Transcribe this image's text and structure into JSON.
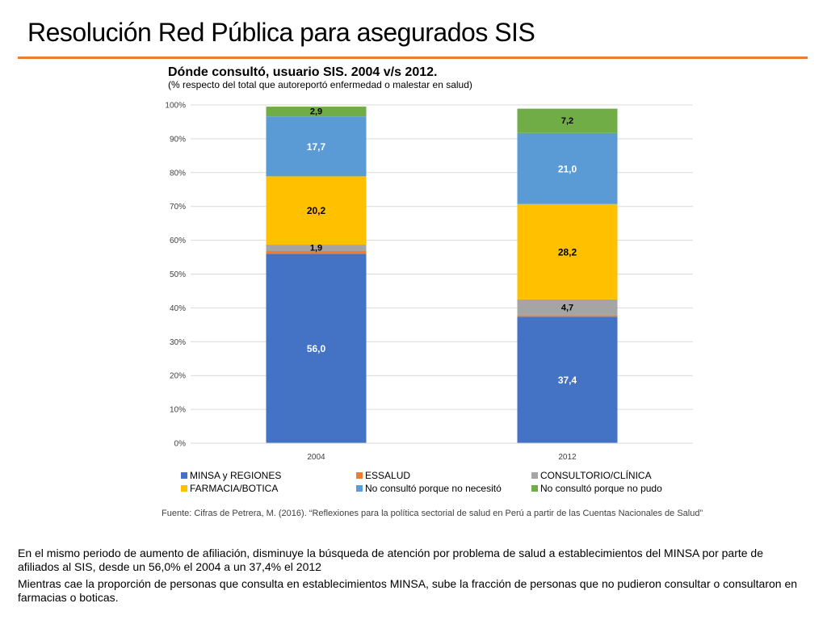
{
  "slide": {
    "title": "Resolución Red Pública para asegurados SIS",
    "accent_color": "#ED7D31",
    "source": "Fuente: Cifras de Petrera, M. (2016). “Reflexiones para la política sectorial de salud en Perú a partir de las Cuentas Nacionales de Salud”",
    "paragraphs": [
      "En el mismo periodo de aumento de afiliación, disminuye la búsqueda de atención por problema de salud a establecimientos del MINSA por parte de afiliados al SIS, desde un 56,0% el 2004 a un 37,4% el 2012",
      "Mientras cae la proporción de personas que consulta en establecimientos MINSA, sube la fracción de personas que no pudieron consultar o consultaron en farmacias o boticas."
    ]
  },
  "chart_data": {
    "type": "bar",
    "stacked": true,
    "title": "Dónde consultó, usuario SIS. 2004 v/s 2012.",
    "subtitle": "(% respecto del total que autoreportó enfermedad o malestar en salud)",
    "categories": [
      "2004",
      "2012"
    ],
    "ylim": [
      0,
      100
    ],
    "yticks": [
      "0%",
      "10%",
      "20%",
      "30%",
      "40%",
      "50%",
      "60%",
      "70%",
      "80%",
      "90%",
      "100%"
    ],
    "grid": true,
    "legend_position": "bottom",
    "series": [
      {
        "name": "MINSA y REGIONES",
        "color": "#4472C4",
        "values": [
          56.0,
          37.4
        ],
        "labels": [
          "56,0",
          "37,4"
        ],
        "label_color": "#ffffff"
      },
      {
        "name": "ESSALUD",
        "color": "#ED7D31",
        "values": [
          0.8,
          0.4
        ],
        "labels": [
          "",
          ""
        ],
        "label_color": "#000000"
      },
      {
        "name": "CONSULTORIO/CLÍNICA",
        "color": "#A5A5A5",
        "values": [
          1.9,
          4.7
        ],
        "labels": [
          "1,9",
          "4,7"
        ],
        "label_color": "#000000"
      },
      {
        "name": "FARMACIA/BOTICA",
        "color": "#FFC000",
        "values": [
          20.2,
          28.2
        ],
        "labels": [
          "20,2",
          "28,2"
        ],
        "label_color": "#000000"
      },
      {
        "name": "No consultó porque no necesitó",
        "color": "#5B9BD5",
        "values": [
          17.7,
          21.0
        ],
        "labels": [
          "17,7",
          "21,0"
        ],
        "label_color": "#ffffff"
      },
      {
        "name": "No consultó porque no pudo",
        "color": "#70AD47",
        "values": [
          2.9,
          7.2
        ],
        "labels": [
          "2,9",
          "7,2"
        ],
        "label_color": "#000000"
      }
    ]
  }
}
